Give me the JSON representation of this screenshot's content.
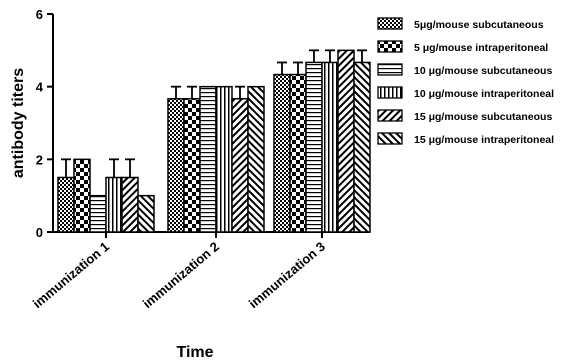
{
  "chart_data": {
    "type": "bar",
    "title": "",
    "xlabel": "Time",
    "ylabel": "antibody titers",
    "ylim": [
      0,
      6
    ],
    "yticks": [
      "0",
      "2",
      "4",
      "6"
    ],
    "categories": [
      "immunization 1",
      "immunization 2",
      "immunization 3"
    ],
    "series": [
      {
        "name": "5μg/mouse subcutaneous",
        "pattern": "dense-check",
        "values": [
          1.5,
          3.667,
          4.333
        ],
        "errors": [
          0.5,
          0.333,
          0.333
        ]
      },
      {
        "name": "5 μg/mouse intraperitoneal",
        "pattern": "big-check",
        "values": [
          2.0,
          3.667,
          4.333
        ],
        "errors": [
          0.0,
          0.333,
          0.333
        ]
      },
      {
        "name": "10 μg/mouse subcutaneous",
        "pattern": "horizontal",
        "values": [
          1.0,
          4.0,
          4.667
        ],
        "errors": [
          0.0,
          0.0,
          0.333
        ]
      },
      {
        "name": "10 μg/mouse intraperitoneal",
        "pattern": "vertical",
        "values": [
          1.5,
          4.0,
          4.667
        ],
        "errors": [
          0.5,
          0.0,
          0.333
        ]
      },
      {
        "name": "15 μg/mouse subcutaneous",
        "pattern": "diag-up",
        "values": [
          1.5,
          3.667,
          5.0
        ],
        "errors": [
          0.5,
          0.333,
          0.0
        ]
      },
      {
        "name": "15 μg/mouse intraperitoneal",
        "pattern": "diag-down",
        "values": [
          1.0,
          4.0,
          4.667
        ],
        "errors": [
          0.0,
          0.0,
          0.333
        ]
      }
    ],
    "legend_position": "right",
    "grid": false
  }
}
